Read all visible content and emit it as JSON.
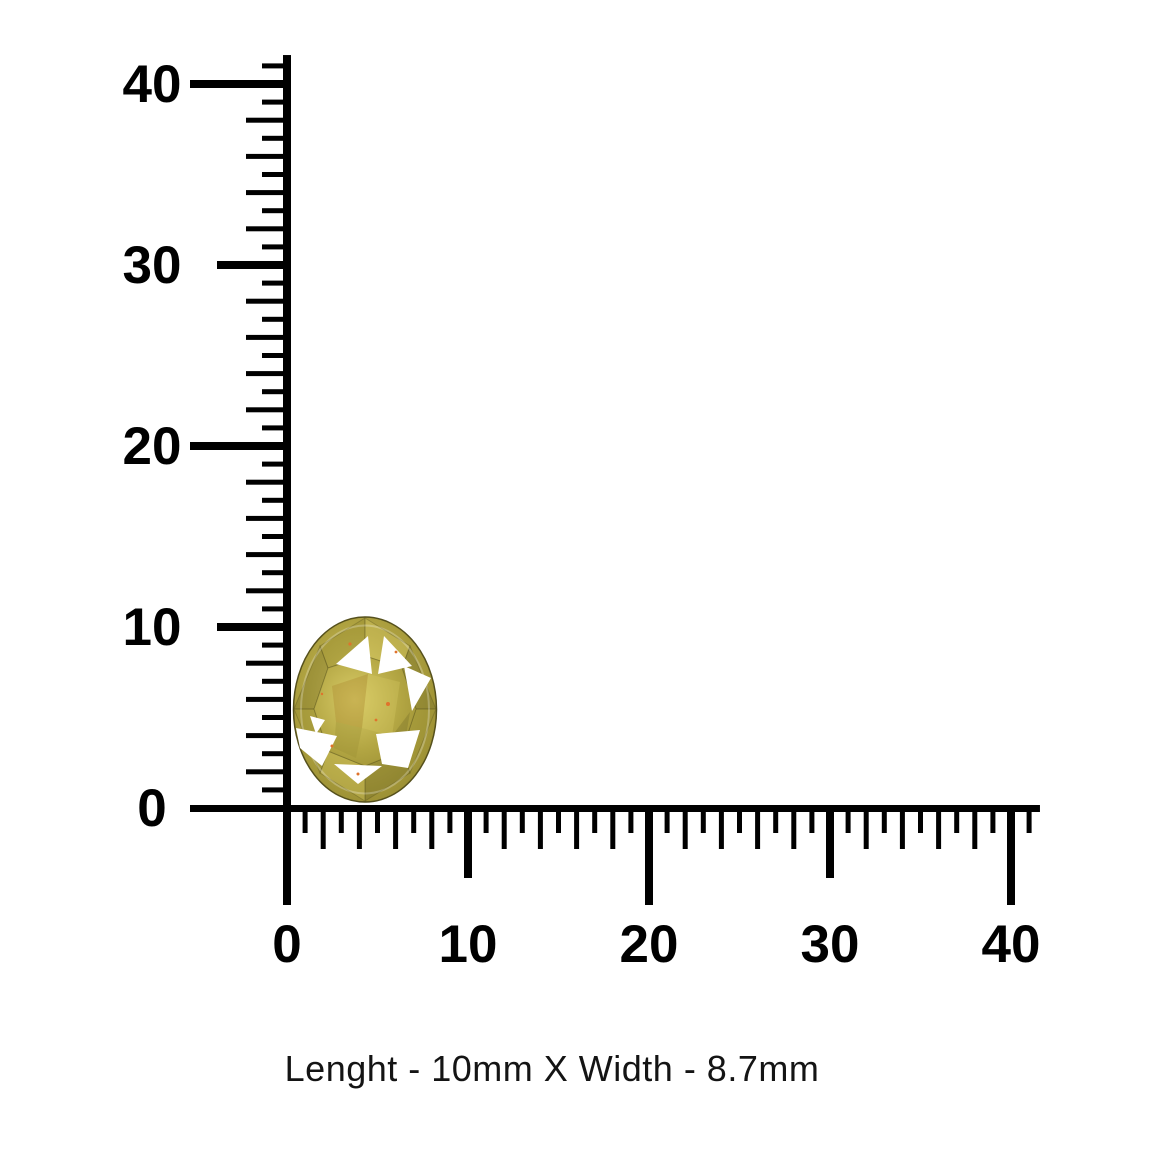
{
  "diagram": {
    "background_color": "#ffffff",
    "caption": "Lenght - 10mm X Width - 8.7mm",
    "ruler": {
      "unit": "mm",
      "color": "#000000",
      "tick_interval_mm": 1,
      "major_interval_mm": 10,
      "range_mm": [
        0,
        40
      ],
      "vertical_axis_labels": [
        "0",
        "10",
        "20",
        "30",
        "40"
      ],
      "horizontal_axis_labels": [
        "0",
        "10",
        "20",
        "30",
        "40"
      ]
    },
    "gemstone": {
      "description": "oval faceted yellow-green gemstone",
      "length_mm": "10",
      "width_mm": "8.7",
      "colors": {
        "body": "#b3a643",
        "light": "#d9cc68",
        "mid": "#9c9034",
        "dark": "#6e6624",
        "deep": "#55501c",
        "amber": "#ad872e",
        "glint": "#ffffff",
        "spark": "#e0732c"
      }
    }
  }
}
